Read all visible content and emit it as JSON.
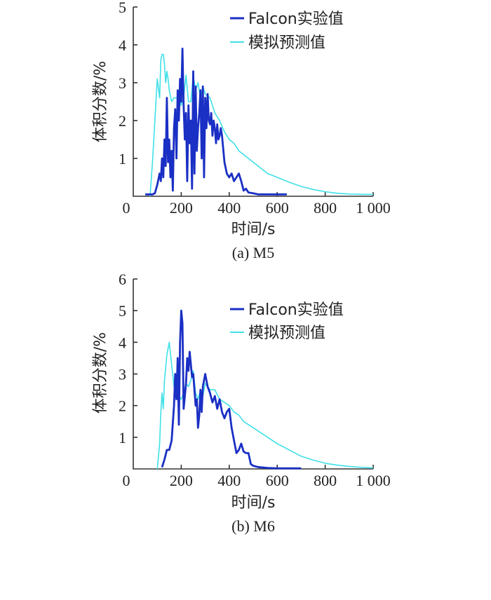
{
  "colors": {
    "experiment": "#1a2fc4",
    "simulation": "#3fe0e8",
    "axis": "#333333"
  },
  "chart_data": [
    {
      "type": "line",
      "caption": "(a) M5",
      "xlabel": "时间/s",
      "ylabel": "体积分数/%",
      "xlim": [
        0,
        1000
      ],
      "ylim": [
        0,
        5
      ],
      "xticks": [
        "0",
        "200",
        "400",
        "600",
        "800",
        "1 000"
      ],
      "xtick_values": [
        0,
        200,
        400,
        600,
        800,
        1000
      ],
      "yticks": [
        "1",
        "2",
        "3",
        "4",
        "5"
      ],
      "ytick_values": [
        1,
        2,
        3,
        4,
        5
      ],
      "legend_position": "top-right",
      "series": [
        {
          "name": "Falcon实验值",
          "color_key": "experiment",
          "x": [
            50,
            60,
            70,
            80,
            90,
            100,
            110,
            115,
            120,
            125,
            130,
            135,
            140,
            145,
            150,
            155,
            160,
            165,
            170,
            175,
            180,
            185,
            190,
            195,
            200,
            205,
            210,
            215,
            220,
            225,
            230,
            235,
            240,
            245,
            250,
            255,
            260,
            265,
            270,
            275,
            280,
            285,
            290,
            295,
            300,
            305,
            310,
            315,
            320,
            325,
            330,
            335,
            340,
            345,
            350,
            355,
            360,
            365,
            370,
            380,
            390,
            400,
            410,
            420,
            430,
            440,
            450,
            460,
            470,
            480,
            500,
            520,
            540,
            560,
            580,
            600,
            620,
            640
          ],
          "values": [
            0.05,
            0.05,
            0.05,
            0.05,
            0.08,
            0.3,
            0.6,
            0.4,
            1.0,
            0.5,
            1.5,
            0.8,
            2.6,
            0.9,
            1.5,
            0.5,
            1.2,
            0.15,
            1.8,
            2.3,
            1.0,
            2.8,
            2.0,
            3.1,
            2.5,
            3.9,
            2.4,
            1.5,
            2.2,
            0.4,
            2.4,
            1.4,
            2.0,
            0.2,
            3.3,
            0.6,
            2.9,
            1.2,
            1.8,
            2.2,
            2.8,
            1.0,
            2.9,
            0.5,
            2.6,
            1.8,
            2.7,
            2.0,
            1.9,
            2.2,
            1.6,
            2.0,
            1.8,
            1.4,
            1.9,
            1.5,
            1.6,
            1.8,
            1.6,
            0.9,
            0.6,
            0.5,
            0.6,
            0.4,
            0.5,
            0.6,
            0.4,
            0.15,
            0.2,
            0.1,
            0.08,
            0.05,
            0.05,
            0.05,
            0.05,
            0.05,
            0.05,
            0.05
          ]
        },
        {
          "name": "模拟预测值",
          "color_key": "simulation",
          "x": [
            70,
            80,
            90,
            100,
            110,
            115,
            120,
            125,
            130,
            135,
            140,
            145,
            150,
            160,
            170,
            180,
            190,
            200,
            210,
            220,
            230,
            240,
            250,
            260,
            270,
            280,
            290,
            300,
            320,
            340,
            360,
            380,
            400,
            420,
            440,
            460,
            480,
            500,
            520,
            540,
            560,
            580,
            600,
            650,
            700,
            750,
            800,
            850,
            900,
            950,
            1000
          ],
          "values": [
            0.0,
            0.9,
            2.0,
            3.1,
            2.6,
            3.6,
            3.75,
            3.75,
            3.5,
            3.0,
            3.3,
            3.1,
            2.8,
            2.5,
            2.6,
            2.6,
            2.6,
            2.4,
            2.6,
            3.2,
            2.5,
            2.5,
            3.2,
            2.8,
            3.0,
            2.6,
            2.9,
            2.7,
            2.6,
            2.2,
            2.0,
            1.7,
            1.5,
            1.4,
            1.2,
            1.1,
            1.0,
            0.9,
            0.8,
            0.7,
            0.6,
            0.55,
            0.5,
            0.37,
            0.26,
            0.18,
            0.12,
            0.08,
            0.06,
            0.05,
            0.05
          ]
        }
      ]
    },
    {
      "type": "line",
      "caption": "(b) M6",
      "xlabel": "时间/s",
      "ylabel": "体积分数/%",
      "xlim": [
        0,
        1000
      ],
      "ylim": [
        0,
        6
      ],
      "xticks": [
        "0",
        "200",
        "400",
        "600",
        "800",
        "1 000"
      ],
      "xtick_values": [
        0,
        200,
        400,
        600,
        800,
        1000
      ],
      "yticks": [
        "1",
        "2",
        "3",
        "4",
        "5",
        "6"
      ],
      "ytick_values": [
        1,
        2,
        3,
        4,
        5,
        6
      ],
      "legend_position": "top-right",
      "series": [
        {
          "name": "Falcon实验值",
          "color_key": "experiment",
          "x": [
            120,
            130,
            140,
            150,
            160,
            170,
            175,
            180,
            185,
            190,
            195,
            200,
            205,
            210,
            215,
            220,
            225,
            230,
            235,
            240,
            245,
            250,
            255,
            260,
            265,
            270,
            275,
            280,
            285,
            290,
            295,
            300,
            310,
            320,
            330,
            340,
            350,
            360,
            370,
            380,
            390,
            400,
            410,
            420,
            430,
            440,
            450,
            460,
            470,
            480,
            490,
            500,
            520,
            560,
            600,
            650,
            700
          ],
          "values": [
            0.05,
            0.3,
            0.6,
            0.6,
            0.9,
            2.0,
            3.0,
            2.2,
            3.5,
            1.4,
            4.0,
            5.0,
            4.6,
            1.9,
            2.3,
            2.7,
            3.5,
            3.1,
            3.7,
            3.3,
            2.9,
            3.0,
            2.5,
            2.0,
            2.2,
            1.3,
            1.7,
            2.5,
            1.8,
            2.6,
            2.8,
            3.0,
            2.6,
            2.4,
            2.1,
            2.3,
            1.9,
            2.2,
            1.8,
            1.6,
            1.8,
            1.9,
            1.3,
            0.9,
            0.5,
            0.6,
            0.8,
            0.55,
            0.5,
            0.5,
            0.15,
            0.1,
            0.06,
            0.03,
            0.02,
            0.02,
            0.02
          ]
        },
        {
          "name": "模拟预测值",
          "color_key": "simulation",
          "x": [
            100,
            110,
            115,
            120,
            125,
            130,
            135,
            140,
            150,
            160,
            170,
            180,
            190,
            200,
            210,
            220,
            230,
            240,
            250,
            260,
            270,
            280,
            290,
            300,
            320,
            340,
            360,
            380,
            400,
            420,
            440,
            460,
            480,
            500,
            520,
            540,
            560,
            580,
            600,
            650,
            700,
            750,
            800,
            850,
            900,
            950,
            1000
          ],
          "values": [
            0.0,
            0.8,
            1.8,
            2.4,
            1.9,
            2.8,
            3.2,
            3.6,
            4.0,
            3.3,
            2.6,
            2.3,
            2.3,
            2.2,
            2.4,
            2.7,
            2.6,
            2.8,
            3.1,
            2.4,
            2.2,
            2.5,
            2.3,
            2.7,
            2.5,
            2.5,
            2.2,
            2.1,
            2.0,
            1.8,
            1.7,
            1.5,
            1.4,
            1.3,
            1.2,
            1.1,
            1.0,
            0.9,
            0.8,
            0.6,
            0.4,
            0.28,
            0.18,
            0.12,
            0.08,
            0.05,
            0.03
          ]
        }
      ]
    }
  ]
}
